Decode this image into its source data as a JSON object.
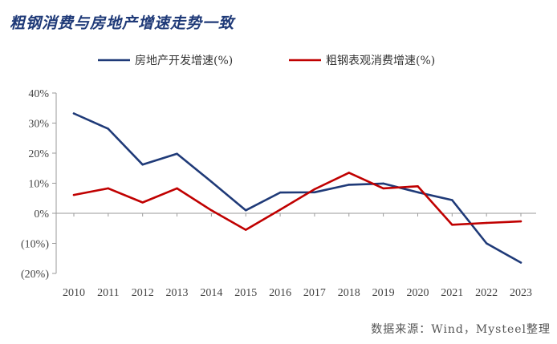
{
  "title": "粗钢消费与房地产增速走势一致",
  "source_note": "数据来源：Wind，Mysteel整理",
  "chart_data": {
    "type": "line",
    "title": "粗钢消费与房地产增速走势一致",
    "categories": [
      "2010",
      "2011",
      "2012",
      "2013",
      "2014",
      "2015",
      "2016",
      "2017",
      "2018",
      "2019",
      "2020",
      "2021",
      "2022",
      "2023"
    ],
    "series": [
      {
        "name": "房地产开发增速(%)",
        "color": "#1f3a78",
        "values": [
          33.2,
          28.1,
          16.2,
          19.8,
          10.5,
          1.0,
          6.9,
          7.0,
          9.5,
          9.9,
          7.0,
          4.4,
          -10.0,
          -16.4
        ]
      },
      {
        "name": "粗钢表观消费增速(%)",
        "color": "#c00000",
        "values": [
          6.1,
          8.3,
          3.6,
          8.3,
          1.0,
          -5.5,
          1.2,
          8.0,
          13.5,
          8.3,
          9.0,
          -3.8,
          -3.2,
          -2.7
        ]
      }
    ],
    "yticks": [
      "40%",
      "30%",
      "20%",
      "10%",
      "0%",
      "(10%)",
      "(20%)"
    ],
    "ylim": [
      -20,
      40
    ],
    "ylabel": "",
    "xlabel": "",
    "grid": false,
    "legend": "top-center"
  }
}
